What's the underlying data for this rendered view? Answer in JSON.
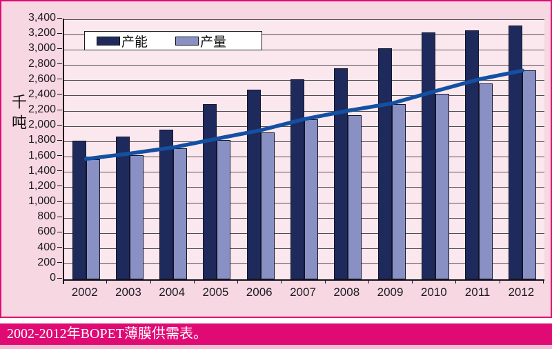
{
  "chart_data": {
    "type": "bar",
    "categories": [
      "2002",
      "2003",
      "2004",
      "2005",
      "2006",
      "2007",
      "2008",
      "2009",
      "2010",
      "2011",
      "2012"
    ],
    "series": [
      {
        "name": "产能",
        "color": "#1e2a5c",
        "values": [
          1810,
          1870,
          1960,
          2290,
          2480,
          2620,
          2760,
          3020,
          3230,
          3260,
          3320
        ]
      },
      {
        "name": "产量",
        "color": "#8890c4",
        "values": [
          1570,
          1620,
          1710,
          1820,
          1920,
          2090,
          2150,
          2290,
          2430,
          2560,
          2730
        ]
      }
    ],
    "trend_line": {
      "color": "#1450a2",
      "values": [
        1575,
        1645,
        1725,
        1840,
        1950,
        2095,
        2205,
        2300,
        2460,
        2615,
        2730
      ]
    },
    "xlabel": "",
    "ylabel": "千吨",
    "ylim": [
      0,
      3400
    ],
    "ytick_step": 200,
    "grid": true,
    "legend_position": "top-left"
  },
  "caption": {
    "text": "2002-2012年BOPET薄膜供需表。"
  },
  "colors": {
    "panel_background": "#f7d7e2",
    "plot_background": "#fbe8ee",
    "accent_magenta": "#e00a74",
    "capacity_bar": "#1e2a5c",
    "output_bar": "#8890c4",
    "trend_line": "#1450a2"
  }
}
